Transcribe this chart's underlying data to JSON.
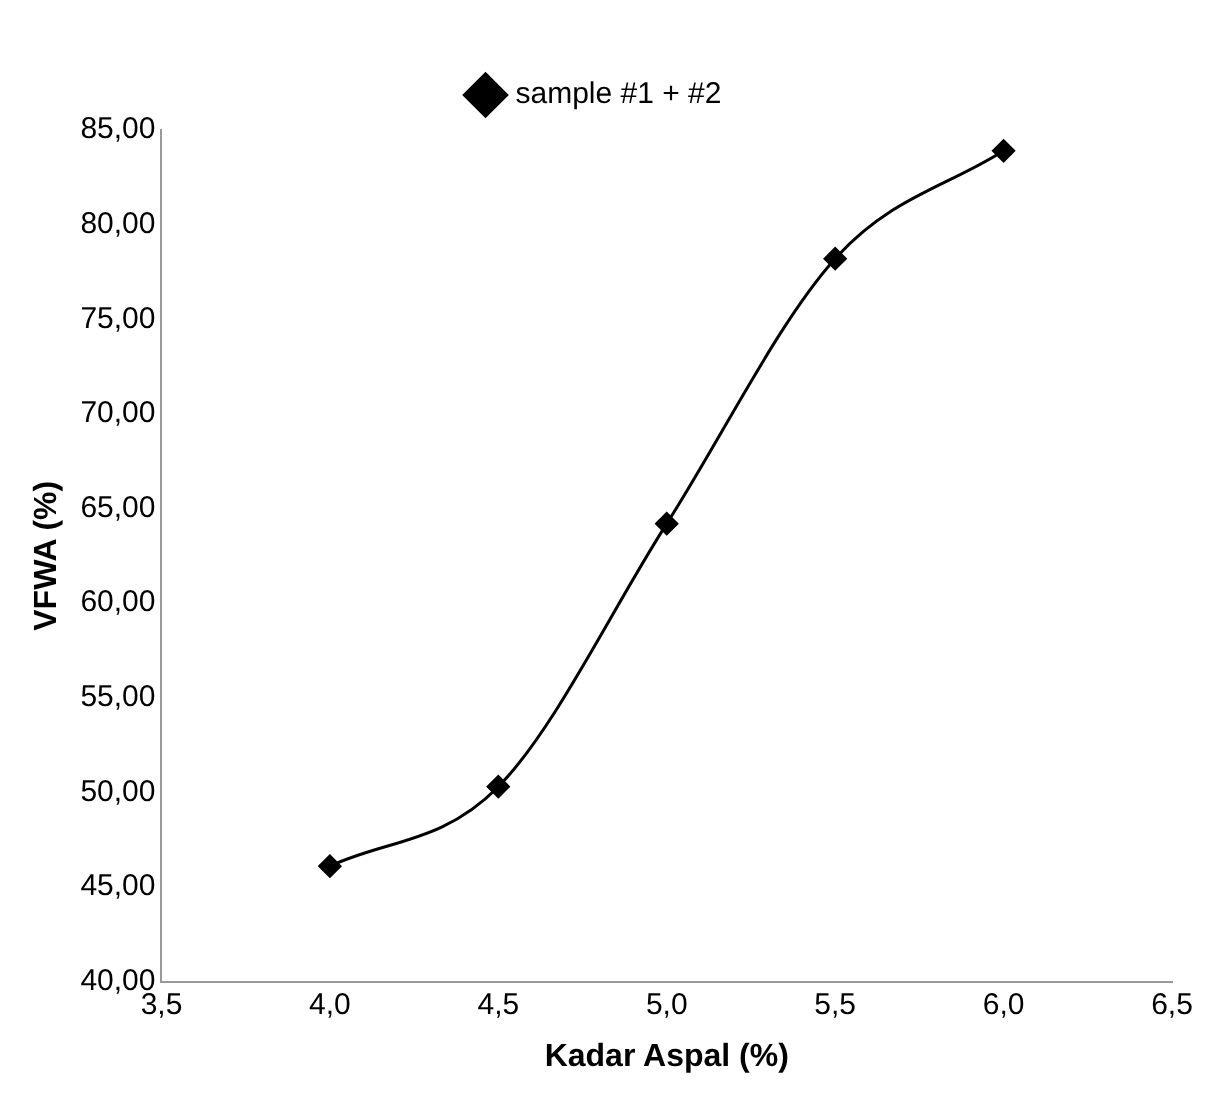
{
  "chart_data": {
    "type": "line",
    "xlabel": "Kadar Aspal (%)",
    "ylabel": "VFWA (%)",
    "x": [
      4.0,
      4.5,
      5.0,
      5.5,
      6.0
    ],
    "series": [
      {
        "name": "sample #1 + #2",
        "color": "#000000",
        "values": [
          46.1,
          50.3,
          64.2,
          78.2,
          83.9
        ]
      }
    ],
    "xlim": [
      3.5,
      6.5
    ],
    "ylim": [
      40,
      85
    ],
    "xticks": [
      {
        "value": 3.5,
        "label": "3,5"
      },
      {
        "value": 4,
        "label": "4,0"
      },
      {
        "value": 4.5,
        "label": "4,5"
      },
      {
        "value": 5,
        "label": "5,0"
      },
      {
        "value": 5.5,
        "label": "5,5"
      },
      {
        "value": 6,
        "label": "6,0"
      },
      {
        "value": 6.5,
        "label": "6,5"
      }
    ],
    "yticks": [
      {
        "value": 40,
        "label": "40,00"
      },
      {
        "value": 45,
        "label": "45,00"
      },
      {
        "value": 50,
        "label": "50,00"
      },
      {
        "value": 55,
        "label": "55,00"
      },
      {
        "value": 60,
        "label": "60,00"
      },
      {
        "value": 65,
        "label": "65,00"
      },
      {
        "value": 70,
        "label": "70,00"
      },
      {
        "value": 75,
        "label": "75,00"
      },
      {
        "value": 80,
        "label": "80,00"
      },
      {
        "value": 85,
        "label": "85,00"
      }
    ],
    "grid": false,
    "legend": "top",
    "marker": "diamond",
    "line_style": "solid"
  }
}
